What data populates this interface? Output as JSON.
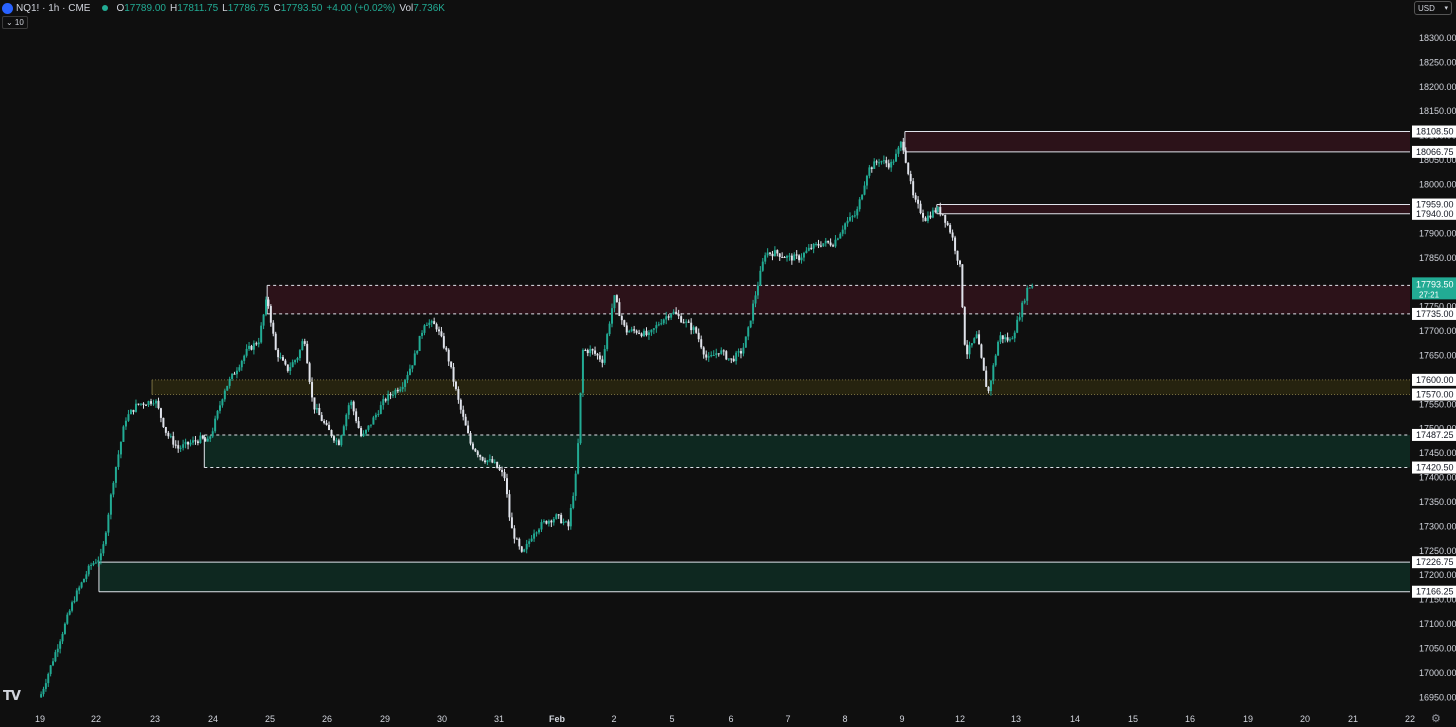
{
  "header": {
    "symbol": "NQ1! · 1h · CME",
    "open_label": "O",
    "open": "17789.00",
    "high_label": "H",
    "high": "17811.75",
    "low_label": "L",
    "low": "17786.75",
    "close_label": "C",
    "close": "17793.50",
    "change": "+4.00 (+0.02%)",
    "vol_label": "Vol",
    "vol": "7.736K"
  },
  "indicator_toggle": "⌄ 10",
  "currency": "USD",
  "logo_text": "TV",
  "colors": {
    "background": "#0f0f0f",
    "up": "#22ab94",
    "down": "#e0e3eb",
    "supply_zone": "#2c1219",
    "demand_zone": "#0e2820",
    "yellow_zone": "#26230f",
    "last_price": "#22ab94"
  },
  "chart_data": {
    "type": "candlestick",
    "symbol": "NQ1!",
    "interval": "1h",
    "ylim": [
      16920,
      18345
    ],
    "yticks": [
      "18300.00",
      "18250.00",
      "18200.00",
      "18150.00",
      "18100.00",
      "18050.00",
      "18000.00",
      "17950.00",
      "17900.00",
      "17850.00",
      "17800.00",
      "17750.00",
      "17700.00",
      "17650.00",
      "17600.00",
      "17550.00",
      "17500.00",
      "17450.00",
      "17400.00",
      "17350.00",
      "17300.00",
      "17250.00",
      "17200.00",
      "17150.00",
      "17100.00",
      "17050.00",
      "17000.00",
      "16950.00"
    ],
    "xticks": [
      "19",
      "22",
      "23",
      "24",
      "25",
      "26",
      "29",
      "30",
      "31",
      "Feb",
      "2",
      "5",
      "6",
      "7",
      "8",
      "9",
      "12",
      "13",
      "14",
      "15",
      "16",
      "19",
      "20",
      "21",
      "22"
    ],
    "price_path": [
      [
        0,
        16950
      ],
      [
        0.3,
        17050
      ],
      [
        0.6,
        17150
      ],
      [
        0.9,
        17220
      ],
      [
        1.1,
        17240
      ],
      [
        1.3,
        17400
      ],
      [
        1.5,
        17520
      ],
      [
        1.7,
        17550
      ],
      [
        1.9,
        17555
      ],
      [
        2.0,
        17560
      ],
      [
        2.2,
        17490
      ],
      [
        2.4,
        17460
      ],
      [
        2.6,
        17470
      ],
      [
        2.8,
        17480
      ],
      [
        2.9,
        17470
      ],
      [
        3.0,
        17500
      ],
      [
        3.2,
        17580
      ],
      [
        3.4,
        17620
      ],
      [
        3.6,
        17660
      ],
      [
        3.8,
        17680
      ],
      [
        3.95,
        17770
      ],
      [
        4.1,
        17660
      ],
      [
        4.3,
        17620
      ],
      [
        4.5,
        17650
      ],
      [
        4.6,
        17690
      ],
      [
        4.75,
        17550
      ],
      [
        5.0,
        17500
      ],
      [
        5.2,
        17470
      ],
      [
        5.4,
        17560
      ],
      [
        5.6,
        17480
      ],
      [
        5.8,
        17520
      ],
      [
        6.0,
        17560
      ],
      [
        6.3,
        17590
      ],
      [
        6.5,
        17640
      ],
      [
        6.7,
        17720
      ],
      [
        6.9,
        17710
      ],
      [
        7.1,
        17650
      ],
      [
        7.3,
        17550
      ],
      [
        7.5,
        17470
      ],
      [
        7.7,
        17440
      ],
      [
        7.9,
        17430
      ],
      [
        8.1,
        17400
      ],
      [
        8.2,
        17300
      ],
      [
        8.4,
        17240
      ],
      [
        8.6,
        17290
      ],
      [
        8.8,
        17310
      ],
      [
        9.0,
        17320
      ],
      [
        9.2,
        17300
      ],
      [
        9.35,
        17420
      ],
      [
        9.45,
        17660
      ],
      [
        9.6,
        17660
      ],
      [
        9.8,
        17640
      ],
      [
        10.0,
        17770
      ],
      [
        10.2,
        17700
      ],
      [
        10.4,
        17700
      ],
      [
        10.6,
        17690
      ],
      [
        10.8,
        17720
      ],
      [
        11.0,
        17740
      ],
      [
        11.2,
        17720
      ],
      [
        11.4,
        17700
      ],
      [
        11.6,
        17640
      ],
      [
        11.8,
        17660
      ],
      [
        12.0,
        17640
      ],
      [
        12.2,
        17660
      ],
      [
        12.3,
        17700
      ],
      [
        12.4,
        17760
      ],
      [
        12.6,
        17860
      ],
      [
        12.8,
        17860
      ],
      [
        13.0,
        17850
      ],
      [
        13.2,
        17850
      ],
      [
        13.4,
        17870
      ],
      [
        13.6,
        17880
      ],
      [
        13.8,
        17880
      ],
      [
        14.0,
        17920
      ],
      [
        14.2,
        17940
      ],
      [
        14.4,
        18030
      ],
      [
        14.6,
        18050
      ],
      [
        14.8,
        18040
      ],
      [
        14.9,
        18060
      ],
      [
        15.0,
        18090
      ],
      [
        15.2,
        17970
      ],
      [
        15.4,
        17930
      ],
      [
        15.6,
        17950
      ],
      [
        15.7,
        17940
      ],
      [
        15.85,
        17900
      ],
      [
        16.0,
        17830
      ],
      [
        16.1,
        17650
      ],
      [
        16.3,
        17690
      ],
      [
        16.5,
        17570
      ],
      [
        16.7,
        17690
      ],
      [
        16.9,
        17680
      ],
      [
        17.0,
        17710
      ],
      [
        17.2,
        17790
      ],
      [
        17.3,
        17795
      ]
    ],
    "zones": [
      {
        "name": "supply-zone-upper",
        "top": 18108.5,
        "bottom": 18066.75,
        "x_start": 15.05,
        "type": "supply",
        "border": "solid"
      },
      {
        "name": "supply-zone-mid",
        "top": 17959.0,
        "bottom": 17940.0,
        "x_start": 15.6,
        "type": "supply",
        "border": "solid"
      },
      {
        "name": "supply-zone-main",
        "top": 17793.5,
        "bottom": 17735.0,
        "x_start": 3.95,
        "type": "supply",
        "border": "dashed"
      },
      {
        "name": "yellow-zone",
        "top": 17600.0,
        "bottom": 17570.0,
        "x_start": 1.95,
        "type": "neutral",
        "border": "dotted"
      },
      {
        "name": "demand-zone-mid",
        "top": 17487.25,
        "bottom": 17420.5,
        "x_start": 2.85,
        "type": "demand",
        "border": "dashed"
      },
      {
        "name": "demand-zone-low",
        "top": 17226.75,
        "bottom": 17166.25,
        "x_start": 1.05,
        "type": "demand",
        "border": "solid"
      }
    ],
    "level_labels": [
      "18108.50",
      "18066.75",
      "17959.00",
      "17940.00",
      "17735.00",
      "17600.00",
      "17570.00",
      "17487.25",
      "17420.50",
      "17226.75",
      "17166.25"
    ],
    "last_price": "17793.50",
    "countdown": "27:21"
  }
}
